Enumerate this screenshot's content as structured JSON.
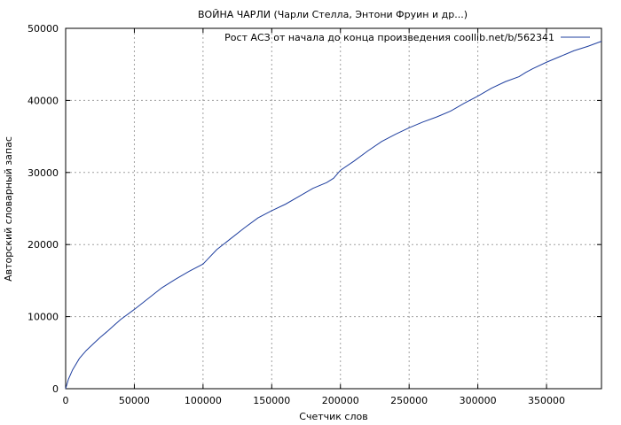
{
  "chart_data": {
    "type": "line",
    "title": "ВОЙНА ЧАРЛИ (Чарли Стелла, Энтони Фруин и др...)",
    "xlabel": "Счетчик слов",
    "ylabel": "Авторский словарный запас",
    "xlim": [
      0,
      390000
    ],
    "ylim": [
      0,
      50000
    ],
    "x_ticks": [
      0,
      50000,
      100000,
      150000,
      200000,
      250000,
      300000,
      350000
    ],
    "x_tick_labels": [
      "0",
      "50000",
      "100000",
      "150000",
      "200000",
      "250000",
      "300000",
      "350000"
    ],
    "y_ticks": [
      0,
      10000,
      20000,
      30000,
      40000,
      50000
    ],
    "y_tick_labels": [
      "0",
      "10000",
      "20000",
      "30000",
      "40000",
      "50000"
    ],
    "grid": true,
    "legend_position": "top-right",
    "series": [
      {
        "name": "Рост АСЗ от начала до конца произведения coollib.net/b/562341",
        "color": "#1f3f9f",
        "x": [
          0,
          2000,
          5000,
          10000,
          15000,
          20000,
          25000,
          30000,
          40000,
          50000,
          60000,
          70000,
          80000,
          90000,
          100000,
          103000,
          110000,
          120000,
          130000,
          140000,
          150000,
          160000,
          170000,
          180000,
          190000,
          195000,
          200000,
          210000,
          220000,
          230000,
          240000,
          250000,
          260000,
          270000,
          280000,
          290000,
          300000,
          310000,
          320000,
          330000,
          335000,
          340000,
          350000,
          360000,
          370000,
          380000,
          390000
        ],
        "y": [
          0,
          1300,
          2600,
          4200,
          5300,
          6200,
          7100,
          7900,
          9600,
          11000,
          12500,
          14000,
          15200,
          16300,
          17300,
          17900,
          19300,
          20800,
          22300,
          23700,
          24700,
          25600,
          26700,
          27800,
          28600,
          29200,
          30300,
          31600,
          33000,
          34300,
          35300,
          36200,
          37000,
          37700,
          38500,
          39600,
          40600,
          41700,
          42600,
          43300,
          43900,
          44400,
          45300,
          46100,
          46900,
          47500,
          48200
        ]
      }
    ]
  }
}
